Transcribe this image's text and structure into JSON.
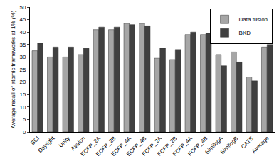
{
  "chart_data": {
    "type": "bar",
    "y_label": "Average recall of atomic frameworks at 1% (%)",
    "categories": [
      "BCI",
      "Daylight",
      "Unity",
      "Avalon",
      "ECFP_2A",
      "ECFP_2B",
      "ECFP_4A",
      "ECFP_4B",
      "FCFP_2A",
      "FCFP_2B",
      "FCFP_4A",
      "FCFP_4B",
      "SimilogA",
      "SimilogB",
      "CATS",
      "Average"
    ],
    "series": [
      {
        "name": "Data fusion",
        "color": "#a6a6a6",
        "values": [
          32.5,
          30,
          30,
          31,
          41,
          41,
          43.5,
          43.5,
          29.5,
          29,
          39,
          39,
          31,
          32,
          22,
          34
        ]
      },
      {
        "name": "BKD",
        "color": "#404040",
        "values": [
          35.5,
          34,
          34,
          33.5,
          42,
          42,
          43,
          42.5,
          33.5,
          33,
          40,
          39.5,
          26.5,
          28,
          20.5,
          35
        ]
      }
    ],
    "ylim": [
      0,
      50
    ],
    "yticks": [
      0,
      5,
      10,
      15,
      20,
      25,
      30,
      35,
      40,
      45,
      50
    ],
    "grid": false,
    "legend": "top-right"
  }
}
